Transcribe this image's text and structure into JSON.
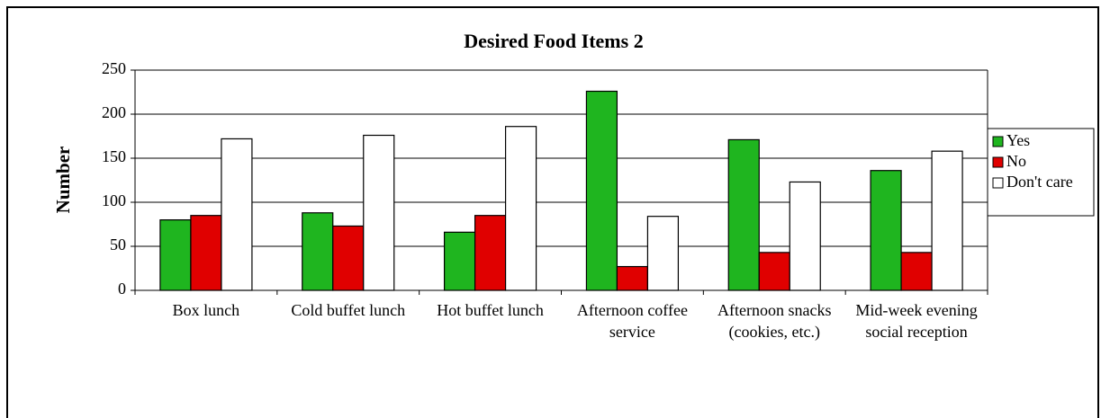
{
  "chart_data": {
    "type": "bar",
    "title": "Desired Food Items 2",
    "y_label": "Number",
    "categories": [
      "Box lunch",
      "Cold buffet lunch",
      "Hot buffet lunch",
      "Afternoon coffee service",
      "Afternoon snacks (cookies, etc.)",
      "Mid-week evening social reception"
    ],
    "series": [
      {
        "name": "Yes",
        "color": "#1fb51f",
        "values": [
          80,
          88,
          66,
          226,
          171,
          136
        ]
      },
      {
        "name": "No",
        "color": "#e00000",
        "values": [
          85,
          73,
          85,
          27,
          43,
          43
        ]
      },
      {
        "name": "Don't care",
        "color": "#ffffff",
        "values": [
          172,
          176,
          186,
          84,
          123,
          158
        ]
      }
    ],
    "ylim": [
      0,
      250
    ],
    "yticks": [
      0,
      50,
      100,
      150,
      200,
      250
    ],
    "grid": true,
    "legend": "right"
  }
}
